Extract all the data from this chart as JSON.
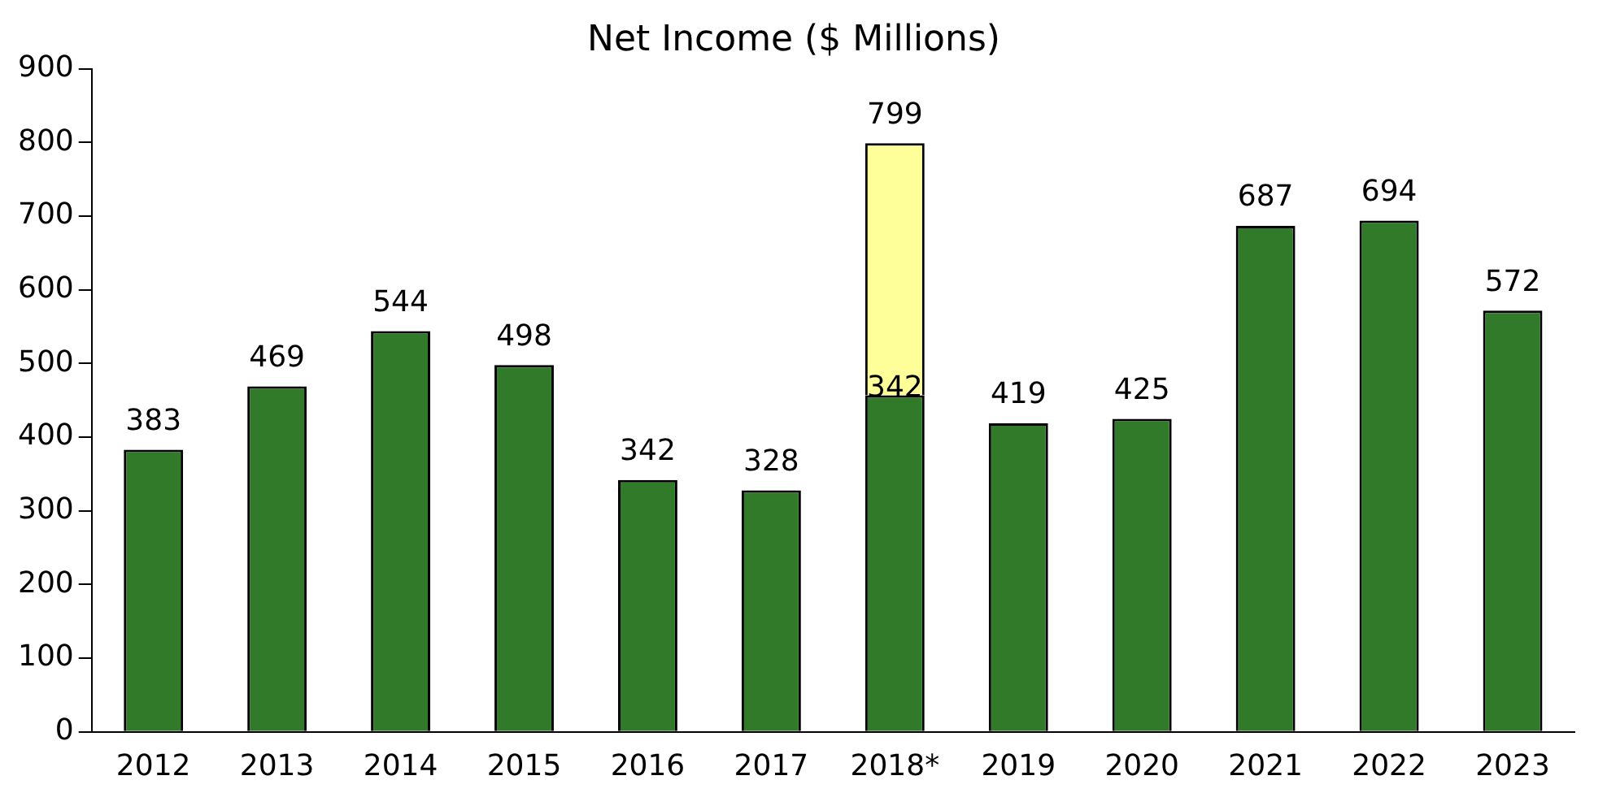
{
  "chart_data": {
    "type": "bar",
    "title": "Net Income ($ Millions)",
    "categories": [
      "2012",
      "2013",
      "2014",
      "2015",
      "2016",
      "2017",
      "2018*",
      "2019",
      "2020",
      "2021",
      "2022",
      "2023"
    ],
    "stacked": true,
    "series": [
      {
        "color": "#317a2a",
        "values": [
          383,
          469,
          544,
          498,
          342,
          328,
          457,
          419,
          425,
          687,
          694,
          572
        ],
        "value_labels": [
          "383",
          "469",
          "544",
          "498",
          "342",
          "328",
          null,
          "419",
          "425",
          "687",
          "694",
          "572"
        ]
      },
      {
        "color": "#ffff99",
        "values": [
          null,
          null,
          null,
          null,
          null,
          null,
          342,
          null,
          null,
          null,
          null,
          null
        ],
        "value_labels": [
          null,
          null,
          null,
          null,
          null,
          null,
          "342",
          null,
          null,
          null,
          null,
          null
        ]
      }
    ],
    "totals": [
      null,
      null,
      null,
      null,
      null,
      null,
      "799",
      null,
      null,
      null,
      null,
      null
    ],
    "ylim": [
      0,
      900
    ],
    "yticks": [
      0,
      100,
      200,
      300,
      400,
      500,
      600,
      700,
      800,
      900
    ],
    "grid": false,
    "legend": false
  }
}
